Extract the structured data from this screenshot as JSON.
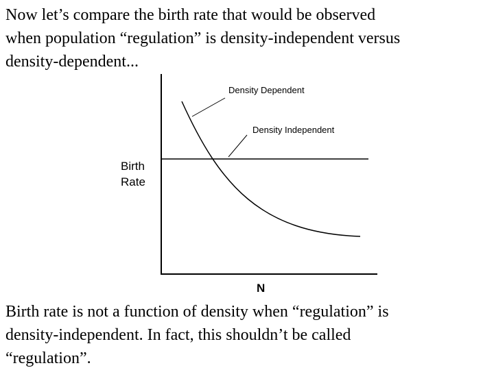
{
  "intro": [
    "Now let’s compare the birth rate that would be observed",
    "when population “regulation” is density-independent versus",
    "density-dependent..."
  ],
  "diagram": {
    "curve_label": "Density Dependent",
    "line_label": "Density Independent",
    "y_label": [
      "Birth",
      "Rate"
    ],
    "x_label": "N"
  },
  "conclusion": [
    "Birth rate is not a function of density when “regulation” is",
    "density-independent. In fact, this shouldn’t be called",
    "“regulation”."
  ]
}
